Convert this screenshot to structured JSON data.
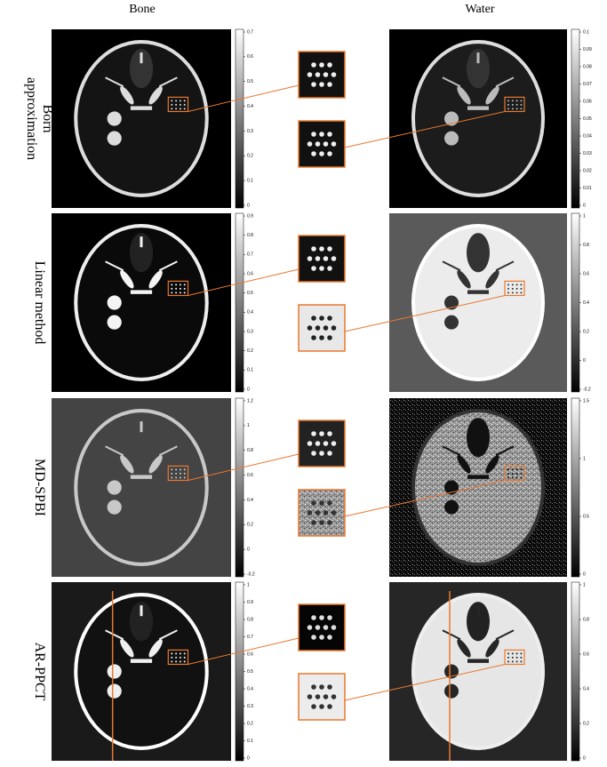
{
  "header": {
    "columns": [
      "Bone",
      "Water"
    ]
  },
  "rows": [
    {
      "label": [
        "Born",
        "approximation"
      ],
      "bone_colorbar": [
        "0.7",
        "0.6",
        "0.5",
        "0.4",
        "0.3",
        "0.2",
        "0.1",
        "0"
      ],
      "water_colorbar": [
        "0.1",
        "0.09",
        "0.08",
        "0.07",
        "0.06",
        "0.05",
        "0.04",
        "0.03",
        "0.02",
        "0.01",
        "0"
      ]
    },
    {
      "label": [
        "Linear method"
      ],
      "bone_colorbar": [
        "0.9",
        "0.8",
        "0.7",
        "0.6",
        "0.5",
        "0.4",
        "0.3",
        "0.2",
        "0.1",
        "0"
      ],
      "water_colorbar": [
        "1",
        "0.8",
        "0.6",
        "0.4",
        "0.2",
        "0",
        "-0.2"
      ]
    },
    {
      "label": [
        "MD-SPBI"
      ],
      "bone_colorbar": [
        "1.2",
        "1",
        "0.8",
        "0.6",
        "0.4",
        "0.2",
        "0",
        "-0.2"
      ],
      "water_colorbar": [
        "1.5",
        "1",
        "0.5",
        "0"
      ]
    },
    {
      "label": [
        "AR-PPCT"
      ],
      "bone_colorbar": [
        "1",
        "0.9",
        "0.8",
        "0.7",
        "0.6",
        "0.5",
        "0.4",
        "0.3",
        "0.2",
        "0.1",
        "0"
      ],
      "water_colorbar": [
        "1",
        "0.8",
        "0.6",
        "0.4",
        "0.2",
        "0"
      ]
    }
  ]
}
